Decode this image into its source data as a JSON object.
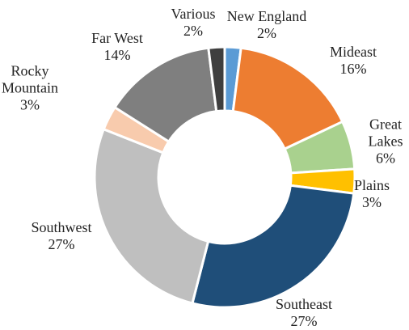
{
  "chart_data": {
    "type": "donut",
    "categories": [
      "New England",
      "Mideast",
      "Great Lakes",
      "Plains",
      "Southeast",
      "Southwest",
      "Rocky Mountain",
      "Far West",
      "Various"
    ],
    "values": [
      2,
      16,
      6,
      3,
      27,
      27,
      3,
      14,
      2
    ],
    "value_labels": [
      "2%",
      "16%",
      "6%",
      "3%",
      "27%",
      "27%",
      "3%",
      "14%",
      "2%"
    ],
    "colors": [
      "#5b9bd5",
      "#ed7d31",
      "#a9d18e",
      "#ffc000",
      "#1f4e79",
      "#bfbfbf",
      "#f8cbad",
      "#7f7f7f",
      "#3f3f3f"
    ]
  }
}
